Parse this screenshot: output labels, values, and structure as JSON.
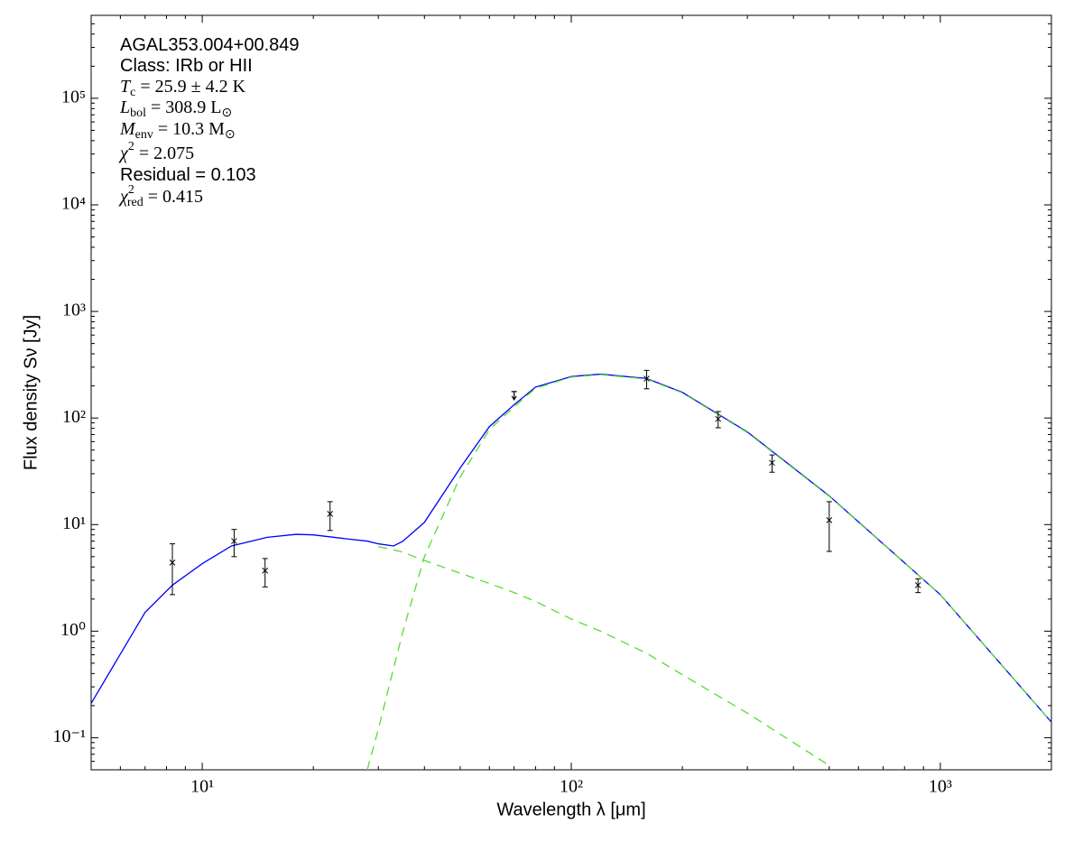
{
  "chart_data": {
    "type": "line",
    "xlabel": "Wavelength λ [μm]",
    "ylabel": "Flux density Sν [Jy]",
    "xlog": true,
    "ylog": true,
    "xlim": [
      5,
      2000
    ],
    "ylim": [
      0.05,
      600000
    ],
    "xticks": [
      {
        "value": 10,
        "label": "10¹"
      },
      {
        "value": 100,
        "label": "10²"
      },
      {
        "value": 1000,
        "label": "10³"
      }
    ],
    "yticks": [
      {
        "value": 0.1,
        "label": "10⁻¹"
      },
      {
        "value": 1,
        "label": "10⁰"
      },
      {
        "value": 10,
        "label": "10¹"
      },
      {
        "value": 100,
        "label": "10²"
      },
      {
        "value": 1000,
        "label": "10³"
      },
      {
        "value": 10000,
        "label": "10⁴"
      },
      {
        "value": 100000,
        "label": "10⁵"
      }
    ],
    "xminorticks": [
      5,
      6,
      7,
      8,
      9,
      20,
      30,
      40,
      50,
      60,
      70,
      80,
      90,
      200,
      300,
      400,
      500,
      600,
      700,
      800,
      900,
      2000
    ],
    "yminorticks": [
      0.06,
      0.07,
      0.08,
      0.09,
      0.2,
      0.3,
      0.4,
      0.5,
      0.6,
      0.7,
      0.8,
      0.9,
      2,
      3,
      4,
      5,
      6,
      7,
      8,
      9,
      20,
      30,
      40,
      50,
      60,
      70,
      80,
      90,
      200,
      300,
      400,
      500,
      600,
      700,
      800,
      900,
      2000,
      3000,
      4000,
      5000,
      6000,
      7000,
      8000,
      9000,
      20000,
      30000,
      40000,
      50000,
      60000,
      70000,
      80000,
      90000,
      200000,
      300000,
      400000,
      500000,
      600000
    ],
    "annotations": [
      {
        "font": "sans",
        "segments": [
          {
            "text": "AGAL353.004+00.849"
          }
        ]
      },
      {
        "font": "sans",
        "segments": [
          {
            "text": "Class: IRb or HII"
          }
        ]
      },
      {
        "font": "serif",
        "segments": [
          {
            "text": "T",
            "italic": true
          },
          {
            "text": "c",
            "shift": "sub"
          },
          {
            "text": " = 25.9 ± 4.2 K"
          }
        ]
      },
      {
        "font": "serif",
        "segments": [
          {
            "text": "L",
            "italic": true
          },
          {
            "text": "bol",
            "shift": "sub"
          },
          {
            "text": " = 308.9 L"
          },
          {
            "text": "⊙",
            "shift": "sub"
          }
        ]
      },
      {
        "font": "serif",
        "segments": [
          {
            "text": "M",
            "italic": true
          },
          {
            "text": "env",
            "shift": "sub"
          },
          {
            "text": " = 10.3 M"
          },
          {
            "text": "⊙",
            "shift": "sub"
          }
        ]
      },
      {
        "font": "serif",
        "segments": [
          {
            "text": "χ",
            "italic": true
          },
          {
            "text": "2",
            "shift": "sup"
          },
          {
            "text": " = 2.075"
          }
        ]
      },
      {
        "font": "sans",
        "segments": [
          {
            "text": "Residual = 0.103"
          }
        ]
      },
      {
        "font": "serif",
        "segments": [
          {
            "text": "χ",
            "italic": true
          },
          {
            "text": "2",
            "shift": "sup"
          },
          {
            "text": "red",
            "shift": "sub"
          },
          {
            "text": " = 0.415"
          }
        ]
      }
    ],
    "x": [
      5,
      7,
      8.3,
      10,
      12,
      15,
      18,
      20,
      25,
      28,
      30,
      33,
      35,
      40,
      50,
      60,
      70,
      80,
      100,
      120,
      160,
      200,
      300,
      500,
      1000,
      2000
    ],
    "series": [
      {
        "color": "#0000ff",
        "dashed": false,
        "values": [
          0.21,
          1.5,
          2.7,
          4.3,
          6.3,
          7.6,
          8.1,
          8.0,
          7.3,
          7.0,
          6.6,
          6.3,
          7.0,
          10.5,
          34,
          83,
          133,
          195,
          245,
          258,
          235,
          174,
          74,
          18.6,
          2.2,
          0.14
        ]
      },
      {
        "color": "#55dd33",
        "dashed": true,
        "values": [
          null,
          null,
          null,
          null,
          null,
          null,
          null,
          null,
          null,
          0.05,
          0.12,
          0.45,
          1.0,
          5,
          28,
          78,
          127,
          190,
          242,
          255,
          232,
          172,
          73,
          18.4,
          2.2,
          0.14
        ]
      },
      {
        "color": "#55dd33",
        "dashed": true,
        "values": [
          null,
          null,
          null,
          null,
          null,
          null,
          null,
          null,
          null,
          null,
          6.2,
          5.8,
          5.5,
          4.6,
          3.5,
          2.8,
          2.3,
          1.9,
          1.3,
          1.0,
          0.62,
          0.39,
          0.17,
          0.055,
          null,
          null
        ]
      }
    ],
    "points": {
      "color": "#000000",
      "x": [
        8.3,
        12.2,
        14.8,
        22.2,
        160,
        250,
        350,
        500,
        870
      ],
      "values": [
        4.4,
        7.0,
        3.7,
        12.6,
        234,
        98,
        38,
        11,
        2.7
      ],
      "errors": [
        2.2,
        2.0,
        1.1,
        3.8,
        46,
        17,
        7,
        5.4,
        0.4
      ]
    },
    "upper_limits": {
      "color": "#000000",
      "x": [
        70
      ],
      "values": [
        177
      ]
    }
  }
}
